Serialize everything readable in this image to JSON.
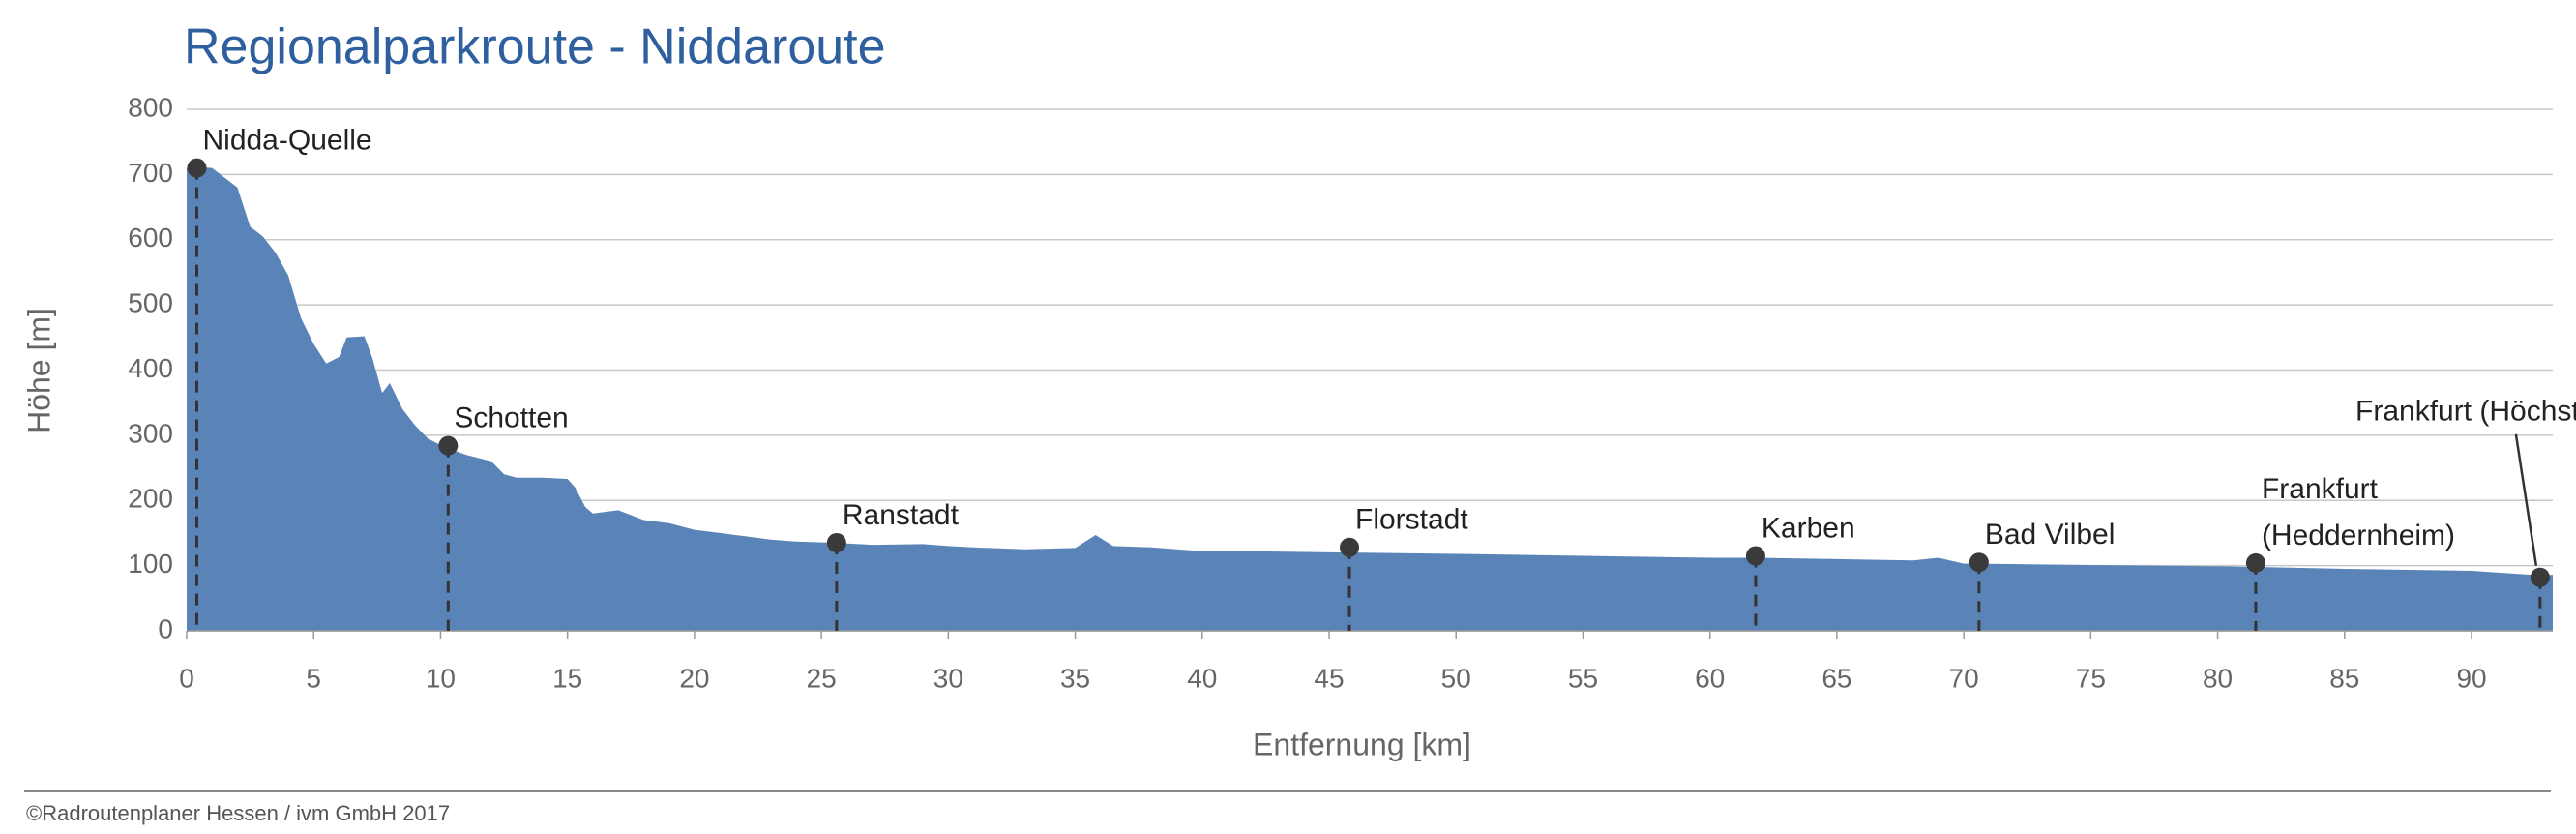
{
  "chart_data": {
    "type": "area",
    "title": "Regionalparkroute - Niddaroute",
    "xlabel": "Entfernung [km]",
    "ylabel": "Höhe [m]",
    "footer": "©Radroutenplaner Hessen / ivm GmbH 2017",
    "color": "#5a84b8",
    "grid": true,
    "xlim": [
      0,
      93.2
    ],
    "ylim": [
      0,
      800
    ],
    "xticks": [
      0,
      5,
      10,
      15,
      20,
      25,
      30,
      35,
      40,
      45,
      50,
      55,
      60,
      65,
      70,
      75,
      80,
      85,
      90
    ],
    "yticks": [
      0,
      100,
      200,
      300,
      400,
      500,
      600,
      700,
      800
    ],
    "x": [
      0,
      0.3,
      1,
      2,
      2.5,
      3,
      3.5,
      4,
      4.5,
      5,
      5.5,
      6,
      6.3,
      7,
      7.3,
      7.7,
      8,
      8.5,
      9,
      9.5,
      10,
      10.3,
      11,
      12,
      12.5,
      13,
      14,
      15,
      15.3,
      15.7,
      16,
      17,
      18,
      19,
      20,
      21,
      22,
      23,
      24,
      25.5,
      27,
      29,
      30,
      31,
      33,
      35,
      35.8,
      36.5,
      38,
      40,
      42,
      45.7,
      50,
      55,
      60,
      61.8,
      65,
      68,
      69,
      70,
      70.6,
      75,
      80,
      81.5,
      85,
      90,
      92.7,
      93.2
    ],
    "values": [
      710,
      712,
      710,
      680,
      620,
      605,
      580,
      545,
      480,
      440,
      410,
      420,
      450,
      452,
      420,
      365,
      380,
      340,
      315,
      295,
      285,
      280,
      270,
      260,
      240,
      235,
      235,
      233,
      220,
      190,
      180,
      185,
      170,
      165,
      155,
      150,
      145,
      140,
      137,
      135,
      132,
      133,
      130,
      128,
      125,
      127,
      147,
      130,
      128,
      122,
      122,
      120,
      118,
      115,
      112,
      112,
      110,
      108,
      112,
      103,
      103,
      101,
      99,
      98,
      95,
      92,
      85,
      86
    ],
    "annotations": [
      {
        "label": [
          "Nidda-Quelle"
        ],
        "x": 0.4,
        "y": 710
      },
      {
        "label": [
          "Schotten"
        ],
        "x": 10.3,
        "y": 284
      },
      {
        "label": [
          "Ranstadt"
        ],
        "x": 25.6,
        "y": 135
      },
      {
        "label": [
          "Florstadt"
        ],
        "x": 45.8,
        "y": 128
      },
      {
        "label": [
          "Karben"
        ],
        "x": 61.8,
        "y": 115
      },
      {
        "label": [
          "Bad Vilbel"
        ],
        "x": 70.6,
        "y": 105
      },
      {
        "label": [
          "Frankfurt",
          "(Heddernheim)"
        ],
        "x": 81.5,
        "y": 104
      },
      {
        "label": [
          "Frankfurt (Höchst)"
        ],
        "x": 92.7,
        "y": 82
      }
    ]
  }
}
